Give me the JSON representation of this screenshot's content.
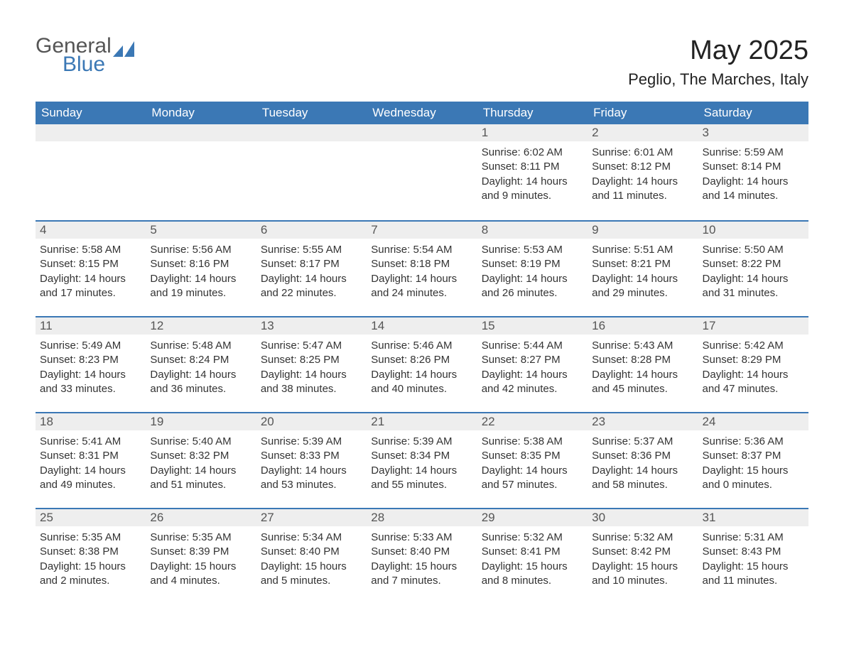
{
  "brand": {
    "line1": "General",
    "line2": "Blue"
  },
  "title": "May 2025",
  "location": "Peglio, The Marches, Italy",
  "colors": {
    "header_bg": "#3b78b5",
    "header_text": "#ffffff",
    "daynum_bg": "#eeeeee",
    "daynum_border": "#3b78b5",
    "body_text": "#333333",
    "page_bg": "#ffffff"
  },
  "weekdays": [
    "Sunday",
    "Monday",
    "Tuesday",
    "Wednesday",
    "Thursday",
    "Friday",
    "Saturday"
  ],
  "weeks": [
    [
      null,
      null,
      null,
      null,
      {
        "n": "1",
        "sunrise": "6:02 AM",
        "sunset": "8:11 PM",
        "daylight": "14 hours and 9 minutes."
      },
      {
        "n": "2",
        "sunrise": "6:01 AM",
        "sunset": "8:12 PM",
        "daylight": "14 hours and 11 minutes."
      },
      {
        "n": "3",
        "sunrise": "5:59 AM",
        "sunset": "8:14 PM",
        "daylight": "14 hours and 14 minutes."
      }
    ],
    [
      {
        "n": "4",
        "sunrise": "5:58 AM",
        "sunset": "8:15 PM",
        "daylight": "14 hours and 17 minutes."
      },
      {
        "n": "5",
        "sunrise": "5:56 AM",
        "sunset": "8:16 PM",
        "daylight": "14 hours and 19 minutes."
      },
      {
        "n": "6",
        "sunrise": "5:55 AM",
        "sunset": "8:17 PM",
        "daylight": "14 hours and 22 minutes."
      },
      {
        "n": "7",
        "sunrise": "5:54 AM",
        "sunset": "8:18 PM",
        "daylight": "14 hours and 24 minutes."
      },
      {
        "n": "8",
        "sunrise": "5:53 AM",
        "sunset": "8:19 PM",
        "daylight": "14 hours and 26 minutes."
      },
      {
        "n": "9",
        "sunrise": "5:51 AM",
        "sunset": "8:21 PM",
        "daylight": "14 hours and 29 minutes."
      },
      {
        "n": "10",
        "sunrise": "5:50 AM",
        "sunset": "8:22 PM",
        "daylight": "14 hours and 31 minutes."
      }
    ],
    [
      {
        "n": "11",
        "sunrise": "5:49 AM",
        "sunset": "8:23 PM",
        "daylight": "14 hours and 33 minutes."
      },
      {
        "n": "12",
        "sunrise": "5:48 AM",
        "sunset": "8:24 PM",
        "daylight": "14 hours and 36 minutes."
      },
      {
        "n": "13",
        "sunrise": "5:47 AM",
        "sunset": "8:25 PM",
        "daylight": "14 hours and 38 minutes."
      },
      {
        "n": "14",
        "sunrise": "5:46 AM",
        "sunset": "8:26 PM",
        "daylight": "14 hours and 40 minutes."
      },
      {
        "n": "15",
        "sunrise": "5:44 AM",
        "sunset": "8:27 PM",
        "daylight": "14 hours and 42 minutes."
      },
      {
        "n": "16",
        "sunrise": "5:43 AM",
        "sunset": "8:28 PM",
        "daylight": "14 hours and 45 minutes."
      },
      {
        "n": "17",
        "sunrise": "5:42 AM",
        "sunset": "8:29 PM",
        "daylight": "14 hours and 47 minutes."
      }
    ],
    [
      {
        "n": "18",
        "sunrise": "5:41 AM",
        "sunset": "8:31 PM",
        "daylight": "14 hours and 49 minutes."
      },
      {
        "n": "19",
        "sunrise": "5:40 AM",
        "sunset": "8:32 PM",
        "daylight": "14 hours and 51 minutes."
      },
      {
        "n": "20",
        "sunrise": "5:39 AM",
        "sunset": "8:33 PM",
        "daylight": "14 hours and 53 minutes."
      },
      {
        "n": "21",
        "sunrise": "5:39 AM",
        "sunset": "8:34 PM",
        "daylight": "14 hours and 55 minutes."
      },
      {
        "n": "22",
        "sunrise": "5:38 AM",
        "sunset": "8:35 PM",
        "daylight": "14 hours and 57 minutes."
      },
      {
        "n": "23",
        "sunrise": "5:37 AM",
        "sunset": "8:36 PM",
        "daylight": "14 hours and 58 minutes."
      },
      {
        "n": "24",
        "sunrise": "5:36 AM",
        "sunset": "8:37 PM",
        "daylight": "15 hours and 0 minutes."
      }
    ],
    [
      {
        "n": "25",
        "sunrise": "5:35 AM",
        "sunset": "8:38 PM",
        "daylight": "15 hours and 2 minutes."
      },
      {
        "n": "26",
        "sunrise": "5:35 AM",
        "sunset": "8:39 PM",
        "daylight": "15 hours and 4 minutes."
      },
      {
        "n": "27",
        "sunrise": "5:34 AM",
        "sunset": "8:40 PM",
        "daylight": "15 hours and 5 minutes."
      },
      {
        "n": "28",
        "sunrise": "5:33 AM",
        "sunset": "8:40 PM",
        "daylight": "15 hours and 7 minutes."
      },
      {
        "n": "29",
        "sunrise": "5:32 AM",
        "sunset": "8:41 PM",
        "daylight": "15 hours and 8 minutes."
      },
      {
        "n": "30",
        "sunrise": "5:32 AM",
        "sunset": "8:42 PM",
        "daylight": "15 hours and 10 minutes."
      },
      {
        "n": "31",
        "sunrise": "5:31 AM",
        "sunset": "8:43 PM",
        "daylight": "15 hours and 11 minutes."
      }
    ]
  ],
  "labels": {
    "sunrise": "Sunrise: ",
    "sunset": "Sunset: ",
    "daylight": "Daylight: "
  }
}
